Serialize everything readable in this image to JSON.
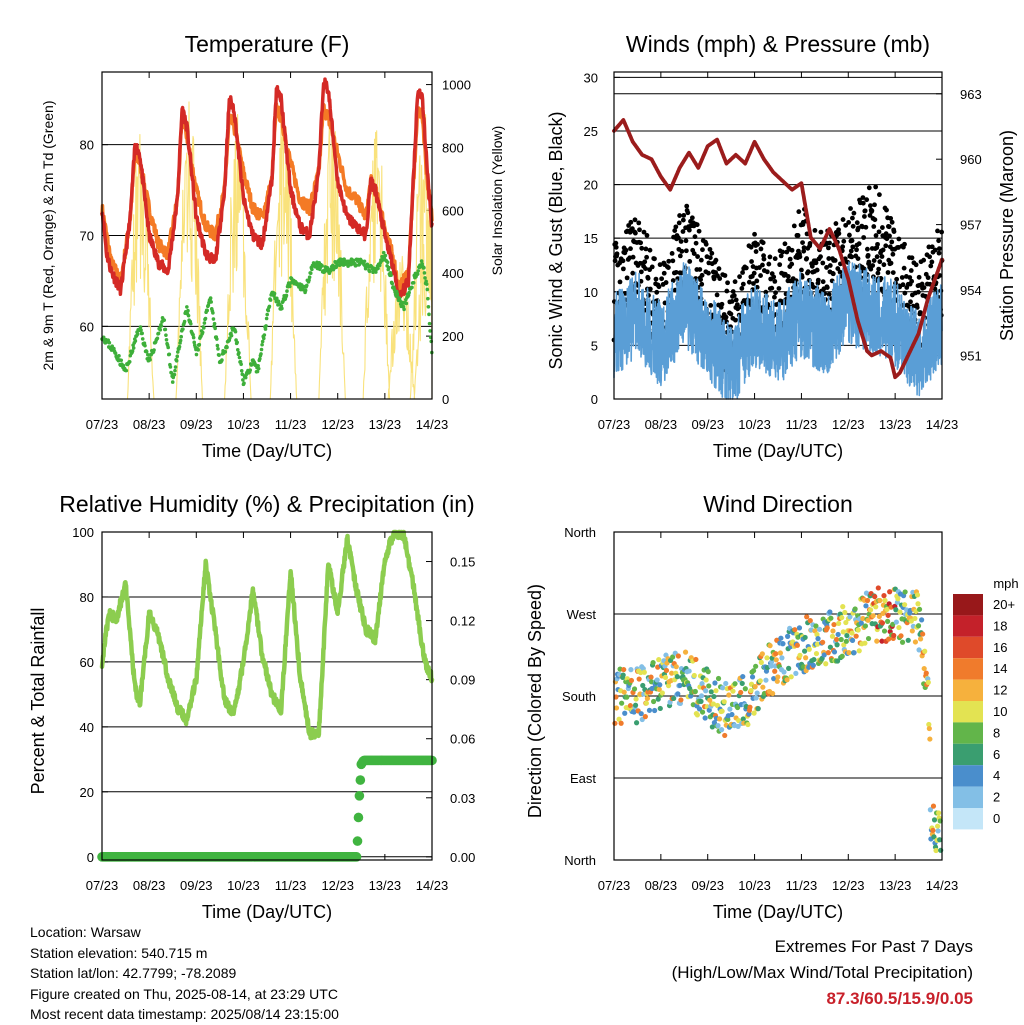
{
  "info": {
    "location": "Location: Warsaw",
    "elevation": "Station elevation: 540.715 m",
    "latlon": "Station lat/lon: 42.7799; -78.2089",
    "created": "Figure created on Thu, 2025-08-14, at 23:29 UTC",
    "recent": "Most recent data timestamp: 2025/08/14 23:15:00"
  },
  "extremes": {
    "title": "Extremes For Past 7 Days",
    "subtitle": "(High/Low/Max Wind/Total Precipitation)",
    "values": "87.3/60.5/15.9/0.05"
  },
  "colors": {
    "temp2m": "#d42a26",
    "temp9m": "#f47a25",
    "dewpoint": "#3eaf3a",
    "solar": "#f9e27c",
    "gust": "#000000",
    "wind": "#5a9ed6",
    "pressure": "#9b1c1c",
    "rh": "#8ccd4f",
    "rain": "#40b440"
  },
  "chart_data": [
    {
      "type": "line",
      "id": "temperature",
      "title": "Temperature (F)",
      "xlabel": "Time (Day/UTC)",
      "ylabel": "2m & 9m T (Red, Orange) & 2m Td (Green)",
      "ylabel_right": "Solar Insolation (Yellow)",
      "x_ticks": [
        "07/23",
        "08/23",
        "09/23",
        "10/23",
        "11/23",
        "12/23",
        "13/23",
        "14/23"
      ],
      "xlim": [
        0,
        7
      ],
      "ylim": [
        52,
        88
      ],
      "y_ticks": [
        60,
        70,
        80
      ],
      "y2lim": [
        0,
        1040
      ],
      "y2_ticks": [
        0,
        200,
        400,
        600,
        800,
        1000
      ],
      "series": [
        {
          "key": "t2m",
          "x": [
            0,
            0.1,
            0.2,
            0.4,
            0.6,
            0.7,
            0.8,
            1.0,
            1.2,
            1.4,
            1.6,
            1.7,
            1.8,
            2.0,
            2.2,
            2.4,
            2.6,
            2.7,
            2.8,
            3.0,
            3.2,
            3.4,
            3.6,
            3.7,
            3.8,
            4.0,
            4.2,
            4.4,
            4.6,
            4.7,
            4.8,
            5.0,
            5.2,
            5.4,
            5.6,
            5.7,
            5.8,
            6.0,
            6.2,
            6.3,
            6.5,
            6.6,
            6.7,
            6.8,
            6.9,
            7.0
          ],
          "values": [
            73,
            68,
            66,
            64,
            72,
            80,
            79,
            70,
            67,
            66,
            74,
            84,
            82,
            72,
            68,
            67,
            75,
            85,
            84,
            74,
            70,
            69,
            76,
            86,
            85,
            75,
            71,
            70,
            77,
            87,
            86,
            76,
            72,
            71,
            70,
            76,
            75,
            70,
            66,
            63,
            65,
            76,
            86,
            85,
            77,
            71
          ]
        },
        {
          "key": "t9m",
          "x": [
            0,
            0.2,
            0.4,
            0.6,
            0.7,
            0.8,
            1.0,
            1.2,
            1.4,
            1.6,
            1.7,
            1.8,
            2.0,
            2.2,
            2.4,
            2.6,
            2.7,
            2.8,
            3.0,
            3.2,
            3.4,
            3.6,
            3.7,
            3.8,
            4.0,
            4.2,
            4.4,
            4.6,
            4.7,
            4.8,
            5.0,
            5.2,
            5.4,
            5.6,
            5.7,
            5.8,
            6.0,
            6.2,
            6.3,
            6.5,
            6.6,
            6.7,
            6.8,
            6.9,
            7.0
          ],
          "values": [
            73,
            67,
            65,
            72,
            79,
            78,
            73,
            69,
            68,
            74,
            83,
            81,
            75,
            71,
            70,
            75,
            83,
            82,
            77,
            73,
            72,
            76,
            84,
            83,
            78,
            74,
            73,
            77,
            84,
            83,
            79,
            75,
            74,
            72,
            76,
            75,
            71,
            67,
            64,
            66,
            75,
            84,
            83,
            76,
            72
          ]
        },
        {
          "key": "td",
          "x": [
            0,
            0.3,
            0.5,
            0.8,
            1.0,
            1.3,
            1.5,
            1.8,
            2.0,
            2.3,
            2.5,
            2.8,
            3.0,
            3.2,
            3.3,
            3.6,
            3.8,
            4.0,
            4.3,
            4.5,
            4.8,
            5.0,
            5.3,
            5.5,
            5.8,
            6.0,
            6.2,
            6.4,
            6.6,
            6.8,
            6.9,
            7.0
          ],
          "values": [
            59,
            57,
            55,
            60,
            56,
            61,
            54,
            62,
            57,
            63,
            56,
            60,
            54,
            56,
            55,
            64,
            62,
            65,
            64,
            67,
            66,
            67,
            67,
            67,
            66,
            68,
            64,
            62,
            65,
            67,
            64,
            57
          ]
        },
        {
          "key": "solar",
          "type": "diurnal_peaks",
          "peak_x": [
            0.82,
            1.85,
            2.88,
            3.85,
            4.88,
            5.82,
            6.35,
            6.82,
            6.9
          ],
          "values": [
            900,
            960,
            960,
            1000,
            960,
            940,
            500,
            950,
            600
          ]
        }
      ]
    },
    {
      "type": "scatter",
      "id": "winds",
      "title": "Winds (mph) & Pressure (mb)",
      "xlabel": "Time (Day/UTC)",
      "ylabel": "Sonic Wind & Gust (Blue, Black)",
      "ylabel_right": "Station Pressure (Maroon)",
      "x_ticks": [
        "07/23",
        "08/23",
        "09/23",
        "10/23",
        "11/23",
        "12/23",
        "13/23",
        "14/23"
      ],
      "xlim": [
        0,
        7
      ],
      "ylim": [
        0,
        30.5
      ],
      "y_ticks": [
        0,
        5,
        10,
        15,
        20,
        25,
        30
      ],
      "y2lim": [
        949,
        964
      ],
      "y2_ticks": [
        951,
        954,
        957,
        960,
        963
      ],
      "series": [
        {
          "key": "wind_mean",
          "x": [
            0,
            0.5,
            1.0,
            1.5,
            2.0,
            2.5,
            3.0,
            3.5,
            4.0,
            4.5,
            5.0,
            5.5,
            6.0,
            6.5,
            7.0
          ],
          "values": [
            6,
            8,
            5,
            9,
            6,
            3,
            7,
            5,
            8,
            6,
            9,
            8,
            7,
            4,
            7
          ]
        },
        {
          "key": "gust_mean",
          "x": [
            0,
            0.5,
            1.0,
            1.5,
            2.0,
            2.5,
            3.0,
            3.5,
            4.0,
            4.5,
            5.0,
            5.5,
            6.0,
            6.5,
            7.0
          ],
          "values": [
            10,
            13,
            8,
            14,
            10,
            6,
            11,
            9,
            14,
            11,
            13,
            16,
            12,
            8,
            12
          ]
        },
        {
          "key": "pressure",
          "x": [
            0,
            0.2,
            0.4,
            0.6,
            0.8,
            1.0,
            1.2,
            1.4,
            1.6,
            1.8,
            2.0,
            2.2,
            2.4,
            2.6,
            2.8,
            3.0,
            3.2,
            3.4,
            3.6,
            3.8,
            4.0,
            4.2,
            4.4,
            4.6,
            4.8,
            5.0,
            5.2,
            5.4,
            5.5,
            5.7,
            5.9,
            6.0,
            6.1,
            6.3,
            6.5,
            6.7,
            6.9,
            7.0
          ],
          "values": [
            961.3,
            961.8,
            960.8,
            960.2,
            960.0,
            959.2,
            958.6,
            959.6,
            960.3,
            959.6,
            960.6,
            960.9,
            959.8,
            960.2,
            959.8,
            960.8,
            960.0,
            959.4,
            959.0,
            958.6,
            958.9,
            956.4,
            955.9,
            956.8,
            955.9,
            954.5,
            952.6,
            951.2,
            951.0,
            951.2,
            950.9,
            950.0,
            950.2,
            951.1,
            952.0,
            953.6,
            954.8,
            955.4
          ]
        }
      ]
    },
    {
      "type": "line",
      "id": "humidity",
      "title": "Relative Humidity (%) & Precipitation (in)",
      "xlabel": "Time (Day/UTC)",
      "ylabel": "Percent & Total Rainfall",
      "x_ticks": [
        "07/23",
        "08/23",
        "09/23",
        "10/23",
        "11/23",
        "12/23",
        "13/23",
        "14/23"
      ],
      "xlim": [
        0,
        7
      ],
      "ylim": [
        -1,
        100
      ],
      "y_ticks": [
        0,
        20,
        40,
        60,
        80,
        100
      ],
      "y2lim": [
        -0.0016,
        0.165
      ],
      "y2_ticks": [
        "0.00",
        "0.03",
        "0.06",
        "0.09",
        "0.12",
        "0.15"
      ],
      "series": [
        {
          "key": "rh",
          "x": [
            0,
            0.15,
            0.3,
            0.5,
            0.7,
            0.8,
            1.0,
            1.2,
            1.4,
            1.6,
            1.8,
            2.0,
            2.2,
            2.4,
            2.6,
            2.8,
            3.0,
            3.2,
            3.4,
            3.6,
            3.8,
            4.0,
            4.2,
            4.4,
            4.6,
            4.8,
            5.0,
            5.2,
            5.4,
            5.6,
            5.8,
            6.0,
            6.2,
            6.4,
            6.6,
            6.8,
            6.9,
            7.0
          ],
          "values": [
            60,
            75,
            73,
            84,
            52,
            47,
            75,
            68,
            55,
            46,
            42,
            55,
            90,
            70,
            48,
            44,
            60,
            82,
            62,
            50,
            45,
            88,
            56,
            38,
            38,
            90,
            75,
            98,
            82,
            70,
            67,
            92,
            100,
            99,
            84,
            64,
            58,
            55
          ]
        },
        {
          "key": "rain",
          "x": [
            0,
            5.4,
            5.42,
            5.44,
            5.46,
            5.5,
            5.55,
            7.0
          ],
          "values": [
            0,
            0,
            0.008,
            0.02,
            0.031,
            0.047,
            0.049,
            0.049
          ]
        }
      ]
    },
    {
      "type": "scatter",
      "id": "direction",
      "title": "Wind Direction",
      "xlabel": "Time (Day/UTC)",
      "ylabel": "Direction (Colored By Speed)",
      "x_ticks": [
        "07/23",
        "08/23",
        "09/23",
        "10/23",
        "11/23",
        "12/23",
        "13/23",
        "14/23"
      ],
      "xlim": [
        0,
        7
      ],
      "ylim": [
        0,
        360
      ],
      "y_ticks": [
        "North",
        "East",
        "South",
        "West",
        "North"
      ],
      "colorbar_title": "mph",
      "colorbar_labels": [
        "0",
        "2",
        "4",
        "6",
        "8",
        "10",
        "12",
        "14",
        "16",
        "18",
        "20+"
      ],
      "colorbar_colors": [
        "#c4e6f8",
        "#83bfe6",
        "#4a8ecc",
        "#3a9e70",
        "#62b54a",
        "#e3e352",
        "#f6b13d",
        "#f07b2c",
        "#df4a2a",
        "#c4212a",
        "#98181a"
      ],
      "series": [
        {
          "key": "dir_mean",
          "x": [
            0,
            0.5,
            1.0,
            1.5,
            2.0,
            2.5,
            3.0,
            3.5,
            4.0,
            4.5,
            5.0,
            5.5,
            6.0,
            6.5,
            7.0
          ],
          "values": [
            180,
            180,
            195,
            200,
            180,
            160,
            185,
            220,
            235,
            245,
            250,
            270,
            270,
            265,
            35
          ]
        }
      ]
    }
  ]
}
